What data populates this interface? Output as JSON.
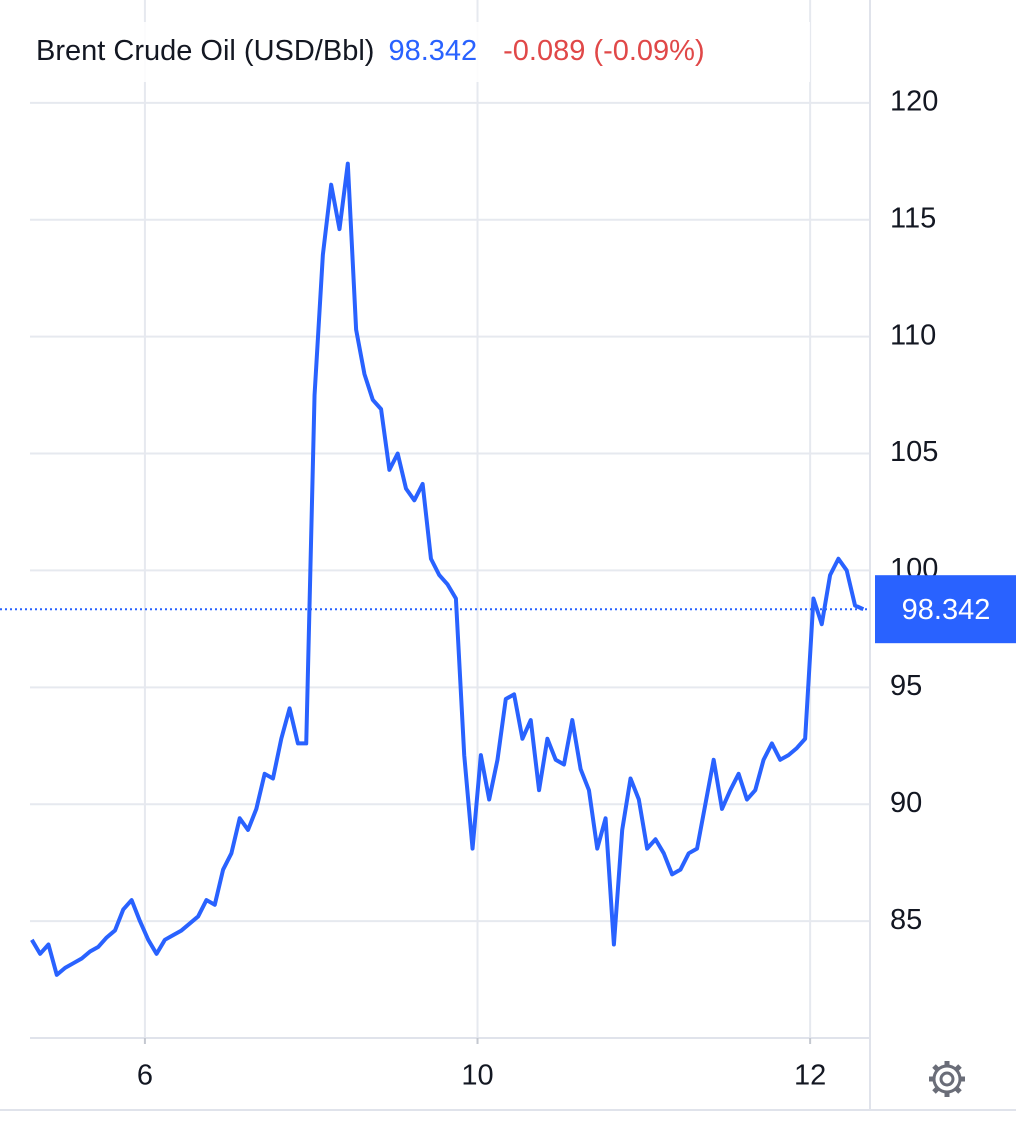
{
  "chart_data": {
    "type": "line",
    "title": "Brent Crude Oil (USD/Bbl)",
    "last_price": 98.342,
    "change": "-0.089 (-0.09%)",
    "x": [
      0.32,
      0.37,
      0.42,
      0.47,
      0.52,
      0.57,
      0.62,
      0.67,
      0.72,
      0.77,
      0.82,
      0.87,
      0.92,
      0.97,
      1.02,
      1.07,
      1.12,
      1.17,
      1.22,
      1.27,
      1.32,
      1.37,
      1.42,
      1.47,
      1.52,
      1.57,
      1.62,
      1.67,
      1.72,
      1.77,
      1.82,
      1.87,
      1.92,
      1.97,
      2.02,
      2.07,
      2.12,
      2.17,
      2.22,
      2.27,
      2.32,
      2.37,
      2.42,
      2.47,
      2.52,
      2.57,
      2.62,
      2.67,
      2.72,
      2.77,
      2.82,
      2.87,
      2.92,
      2.97,
      3.02,
      3.07,
      3.12,
      3.17,
      3.22,
      3.27,
      3.32,
      3.37,
      3.42,
      3.47,
      3.52,
      3.57,
      3.62,
      3.67,
      3.72,
      3.77,
      3.82,
      3.87,
      3.92,
      3.97,
      4.02,
      4.07,
      4.12,
      4.17,
      4.22,
      4.27,
      4.32,
      4.37,
      4.42,
      4.47,
      4.52,
      4.57,
      4.62,
      4.67,
      4.72,
      4.77,
      4.82,
      4.87,
      4.92,
      4.97,
      5.02,
      5.07,
      5.12,
      5.17,
      5.22,
      5.27,
      5.32
    ],
    "series": [
      {
        "color": "#2962ff",
        "values": [
          84.2,
          83.6,
          84.0,
          82.7,
          83.0,
          83.2,
          83.4,
          83.7,
          83.9,
          84.3,
          84.6,
          85.5,
          85.9,
          85.0,
          84.2,
          83.6,
          84.2,
          84.4,
          84.6,
          84.9,
          85.2,
          85.9,
          85.7,
          87.2,
          87.9,
          89.4,
          88.9,
          89.8,
          91.3,
          91.1,
          92.8,
          94.1,
          92.6,
          92.6,
          107.5,
          113.5,
          116.5,
          114.6,
          117.4,
          110.3,
          108.4,
          107.3,
          106.9,
          104.3,
          105.0,
          103.5,
          103.0,
          103.7,
          100.5,
          99.8,
          99.4,
          98.8,
          92.1,
          88.1,
          92.1,
          90.2,
          91.9,
          94.5,
          94.7,
          92.8,
          93.6,
          90.6,
          92.8,
          91.9,
          91.7,
          93.6,
          91.5,
          90.6,
          88.1,
          89.4,
          84.0,
          88.9,
          91.1,
          90.2,
          88.1,
          88.5,
          87.9,
          87.0,
          87.2,
          87.9,
          88.1,
          90.0,
          91.9,
          89.8,
          90.6,
          91.3,
          90.2,
          90.6,
          91.9,
          92.6,
          91.9,
          92.1,
          92.4,
          92.8,
          98.8,
          97.7,
          99.8,
          100.5,
          100.0,
          98.5,
          98.342
        ]
      }
    ],
    "xlim": [
      0.309,
      5.36
    ],
    "xticks": [
      {
        "value": 1,
        "label": "6"
      },
      {
        "value": 3,
        "label": "10"
      },
      {
        "value": 5,
        "label": "12"
      }
    ],
    "ylim": [
      80,
      124.4
    ],
    "yticks": [
      85,
      90,
      95,
      100,
      105,
      110,
      115,
      120
    ],
    "grid": true
  }
}
